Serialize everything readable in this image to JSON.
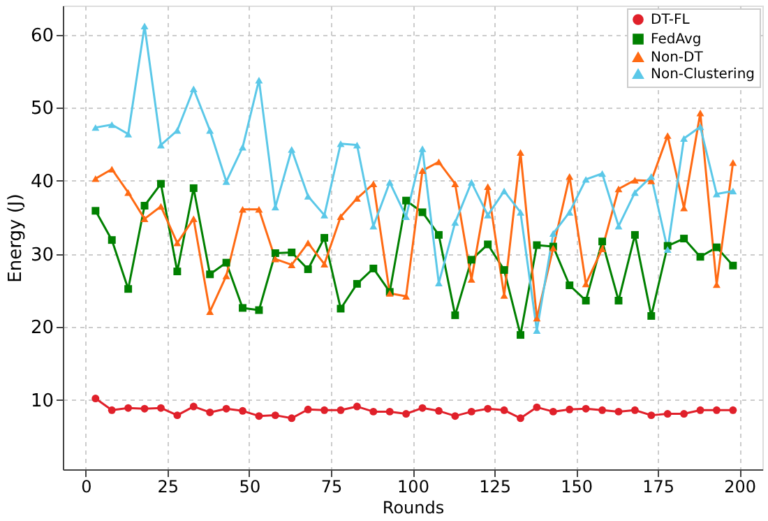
{
  "chart_data": {
    "type": "line",
    "xlabel": "Rounds",
    "ylabel": "Energy (J)",
    "x": [
      3,
      8,
      13,
      18,
      23,
      28,
      33,
      38,
      43,
      48,
      53,
      58,
      63,
      68,
      73,
      78,
      83,
      88,
      93,
      98,
      103,
      108,
      113,
      118,
      123,
      128,
      133,
      138,
      143,
      148,
      153,
      158,
      163,
      168,
      173,
      178,
      183,
      188,
      193,
      198
    ],
    "series": [
      {
        "name": "DT-FL",
        "color": "#e0202a",
        "marker": "circle",
        "values": [
          10.2,
          8.6,
          8.9,
          8.8,
          8.9,
          7.9,
          9.1,
          8.3,
          8.8,
          8.5,
          7.8,
          7.9,
          7.5,
          8.7,
          8.6,
          8.6,
          9.1,
          8.4,
          8.4,
          8.1,
          8.9,
          8.5,
          7.8,
          8.4,
          8.8,
          8.6,
          7.5,
          9.0,
          8.4,
          8.7,
          8.8,
          8.6,
          8.4,
          8.6,
          7.9,
          8.1,
          8.1,
          8.6,
          8.6,
          8.6
        ]
      },
      {
        "name": "FedAvg",
        "color": "#008000",
        "marker": "square",
        "values": [
          35.9,
          31.9,
          25.2,
          36.6,
          39.6,
          27.6,
          39.0,
          27.2,
          28.8,
          22.6,
          22.3,
          30.1,
          30.2,
          27.9,
          32.2,
          22.5,
          25.9,
          28.0,
          24.8,
          37.3,
          35.7,
          32.6,
          21.6,
          29.2,
          31.3,
          27.8,
          18.9,
          31.2,
          31.0,
          25.7,
          23.6,
          31.7,
          23.6,
          32.6,
          21.5,
          31.1,
          32.1,
          29.6,
          30.9,
          28.4
        ]
      },
      {
        "name": "Non-DT",
        "color": "#ff6a13",
        "marker": "triangle",
        "values": [
          40.3,
          41.6,
          38.4,
          34.8,
          36.5,
          31.5,
          34.8,
          22.1,
          27.0,
          36.1,
          36.1,
          29.3,
          28.5,
          31.5,
          28.6,
          35.1,
          37.6,
          39.6,
          24.6,
          24.2,
          41.4,
          42.6,
          39.6,
          26.5,
          39.2,
          24.3,
          43.9,
          21.2,
          30.8,
          40.6,
          25.9,
          30.7,
          38.9,
          40.1,
          40.0,
          46.2,
          36.3,
          49.3,
          25.8,
          42.5
        ]
      },
      {
        "name": "Non-Clustering",
        "color": "#5bc8e8",
        "marker": "triangle",
        "values": [
          47.3,
          47.7,
          46.4,
          61.2,
          44.9,
          46.9,
          52.6,
          46.9,
          39.9,
          44.6,
          53.8,
          36.4,
          44.3,
          37.9,
          35.3,
          45.1,
          44.9,
          33.8,
          39.8,
          35.1,
          44.4,
          26.0,
          34.3,
          39.8,
          35.3,
          38.6,
          35.7,
          19.5,
          32.8,
          35.7,
          40.2,
          41.0,
          33.8,
          38.4,
          40.6,
          30.6,
          45.8,
          47.4,
          38.2,
          38.6
        ]
      }
    ],
    "xlim": [
      -7,
      207
    ],
    "xticks": [
      0,
      25,
      50,
      75,
      100,
      125,
      150,
      175,
      200
    ],
    "ylim": [
      0.5,
      64
    ],
    "yticks": [
      10,
      20,
      30,
      40,
      50,
      60
    ],
    "grid": true,
    "legend": "top right",
    "line_style": "solid"
  }
}
